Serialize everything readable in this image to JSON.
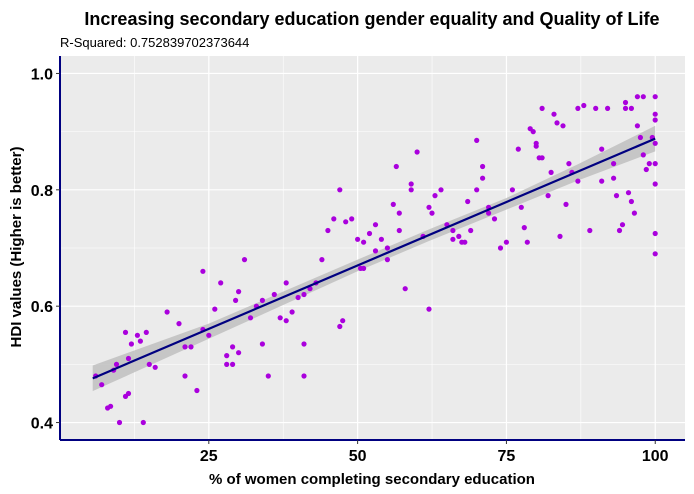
{
  "chart_data": {
    "type": "scatter",
    "title": "Increasing secondary education gender equality and Quality of Life",
    "subtitle": "R-Squared:  0.752839702373644",
    "xlabel": "% of women completing secondary education",
    "ylabel": "HDI values (Higher is better)",
    "xlim": [
      0,
      105
    ],
    "ylim": [
      0.37,
      1.03
    ],
    "xticks": [
      25,
      50,
      75,
      100
    ],
    "yticks": [
      0.4,
      0.6,
      0.8,
      1.0
    ],
    "xtick_labels": [
      "25",
      "50",
      "75",
      "100"
    ],
    "ytick_labels": [
      "0.4",
      "0.6",
      "0.8",
      "1.0"
    ],
    "grid": true,
    "regression_line": {
      "x": [
        5.5,
        100
      ],
      "y": [
        0.476,
        0.888
      ]
    },
    "confidence_band": {
      "x": [
        5.5,
        25,
        50,
        62,
        75,
        87,
        100
      ],
      "upper": [
        0.498,
        0.57,
        0.68,
        0.732,
        0.786,
        0.844,
        0.91
      ],
      "lower": [
        0.454,
        0.544,
        0.66,
        0.712,
        0.766,
        0.816,
        0.866
      ]
    },
    "colors": {
      "points": "#aa00dd",
      "line": "#000080",
      "band": "#bfbfbf",
      "panel": "#ebebeb",
      "grid": "#ffffff",
      "axis": "#000080"
    },
    "points": [
      [
        6,
        0.48
      ],
      [
        7,
        0.465
      ],
      [
        8,
        0.425
      ],
      [
        8.5,
        0.428
      ],
      [
        9,
        0.49
      ],
      [
        9.5,
        0.5
      ],
      [
        10,
        0.4
      ],
      [
        11,
        0.445
      ],
      [
        11.5,
        0.45
      ],
      [
        11,
        0.555
      ],
      [
        11.5,
        0.51
      ],
      [
        12,
        0.535
      ],
      [
        13,
        0.55
      ],
      [
        13.5,
        0.54
      ],
      [
        14,
        0.4
      ],
      [
        14.5,
        0.555
      ],
      [
        15,
        0.5
      ],
      [
        16,
        0.495
      ],
      [
        18,
        0.59
      ],
      [
        20,
        0.57
      ],
      [
        21,
        0.48
      ],
      [
        21,
        0.53
      ],
      [
        22,
        0.53
      ],
      [
        23,
        0.455
      ],
      [
        24,
        0.66
      ],
      [
        24,
        0.56
      ],
      [
        25,
        0.55
      ],
      [
        26,
        0.595
      ],
      [
        27,
        0.64
      ],
      [
        28,
        0.515
      ],
      [
        28,
        0.5
      ],
      [
        29,
        0.53
      ],
      [
        29,
        0.5
      ],
      [
        29.5,
        0.61
      ],
      [
        30,
        0.625
      ],
      [
        30,
        0.52
      ],
      [
        31,
        0.68
      ],
      [
        32,
        0.58
      ],
      [
        33,
        0.6
      ],
      [
        34,
        0.61
      ],
      [
        34,
        0.535
      ],
      [
        35,
        0.48
      ],
      [
        36,
        0.62
      ],
      [
        37,
        0.58
      ],
      [
        38,
        0.64
      ],
      [
        38,
        0.575
      ],
      [
        39,
        0.59
      ],
      [
        40,
        0.615
      ],
      [
        41,
        0.62
      ],
      [
        41,
        0.48
      ],
      [
        41,
        0.535
      ],
      [
        42,
        0.63
      ],
      [
        43,
        0.64
      ],
      [
        44,
        0.68
      ],
      [
        45,
        0.73
      ],
      [
        46,
        0.75
      ],
      [
        47,
        0.565
      ],
      [
        47,
        0.8
      ],
      [
        47.5,
        0.575
      ],
      [
        48,
        0.745
      ],
      [
        49,
        0.75
      ],
      [
        50,
        0.715
      ],
      [
        50.5,
        0.665
      ],
      [
        51,
        0.71
      ],
      [
        51,
        0.665
      ],
      [
        52,
        0.725
      ],
      [
        53,
        0.74
      ],
      [
        53,
        0.695
      ],
      [
        54,
        0.715
      ],
      [
        55,
        0.68
      ],
      [
        55,
        0.7
      ],
      [
        56,
        0.775
      ],
      [
        56.5,
        0.84
      ],
      [
        57,
        0.76
      ],
      [
        57,
        0.73
      ],
      [
        58,
        0.63
      ],
      [
        59,
        0.81
      ],
      [
        59,
        0.8
      ],
      [
        60,
        0.865
      ],
      [
        61,
        0.72
      ],
      [
        62,
        0.595
      ],
      [
        62,
        0.77
      ],
      [
        62.5,
        0.76
      ],
      [
        63,
        0.79
      ],
      [
        64,
        0.8
      ],
      [
        65,
        0.74
      ],
      [
        66,
        0.73
      ],
      [
        66,
        0.715
      ],
      [
        67,
        0.72
      ],
      [
        67.5,
        0.71
      ],
      [
        68,
        0.71
      ],
      [
        68.5,
        0.78
      ],
      [
        69,
        0.73
      ],
      [
        70,
        0.885
      ],
      [
        70,
        0.8
      ],
      [
        71,
        0.84
      ],
      [
        71,
        0.82
      ],
      [
        72,
        0.77
      ],
      [
        72,
        0.76
      ],
      [
        73,
        0.75
      ],
      [
        74,
        0.7
      ],
      [
        75,
        0.71
      ],
      [
        76,
        0.8
      ],
      [
        77,
        0.87
      ],
      [
        77.5,
        0.77
      ],
      [
        78,
        0.735
      ],
      [
        78.5,
        0.71
      ],
      [
        79,
        0.905
      ],
      [
        79.5,
        0.9
      ],
      [
        80,
        0.88
      ],
      [
        80,
        0.875
      ],
      [
        80.5,
        0.855
      ],
      [
        81,
        0.94
      ],
      [
        81,
        0.855
      ],
      [
        82,
        0.79
      ],
      [
        82.5,
        0.83
      ],
      [
        83,
        0.93
      ],
      [
        83.5,
        0.915
      ],
      [
        84,
        0.72
      ],
      [
        84.5,
        0.91
      ],
      [
        85,
        0.775
      ],
      [
        85.5,
        0.845
      ],
      [
        86,
        0.83
      ],
      [
        87,
        0.94
      ],
      [
        87,
        0.815
      ],
      [
        88,
        0.945
      ],
      [
        89,
        0.73
      ],
      [
        90,
        0.94
      ],
      [
        91,
        0.815
      ],
      [
        91,
        0.87
      ],
      [
        92,
        0.94
      ],
      [
        93,
        0.845
      ],
      [
        93,
        0.82
      ],
      [
        93.5,
        0.79
      ],
      [
        94,
        0.73
      ],
      [
        94.5,
        0.74
      ],
      [
        95,
        0.95
      ],
      [
        95,
        0.94
      ],
      [
        95.5,
        0.795
      ],
      [
        96,
        0.94
      ],
      [
        96,
        0.78
      ],
      [
        96.5,
        0.76
      ],
      [
        97,
        0.96
      ],
      [
        97,
        0.91
      ],
      [
        97.5,
        0.89
      ],
      [
        98,
        0.96
      ],
      [
        98,
        0.86
      ],
      [
        98.5,
        0.835
      ],
      [
        99,
        0.845
      ],
      [
        99.5,
        0.89
      ],
      [
        100,
        0.96
      ],
      [
        100,
        0.93
      ],
      [
        100,
        0.92
      ],
      [
        100,
        0.88
      ],
      [
        100,
        0.845
      ],
      [
        100,
        0.81
      ],
      [
        100,
        0.725
      ],
      [
        100,
        0.69
      ]
    ]
  }
}
